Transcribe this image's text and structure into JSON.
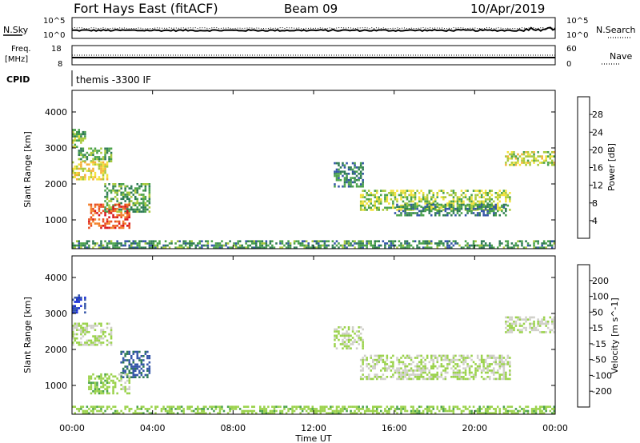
{
  "header": {
    "station": "Fort Hays East (fitACF)",
    "beam": "Beam 09",
    "date": "10/Apr/2019"
  },
  "noise_panel": {
    "left_label": "N.Sky",
    "right_label": "N.Search",
    "left_ticks": [
      "10^5",
      "10^0"
    ],
    "right_ticks": [
      "10^5",
      "10^0"
    ]
  },
  "freq_panel": {
    "left_label_1": "Freq.",
    "left_label_2": "[MHz]",
    "right_label": "Nave",
    "left_ticks": [
      "18",
      "8"
    ],
    "right_ticks": [
      "60",
      "0"
    ]
  },
  "cpid_panel": {
    "label": "CPID",
    "text": "themis -3300 IF"
  },
  "power_colorbar": {
    "label": "Power [dB]",
    "ticks": [
      "4",
      "8",
      "12",
      "16",
      "20",
      "24",
      "28"
    ],
    "colors": [
      "#1a2fd6",
      "#3455a8",
      "#2f7b55",
      "#4aa24a",
      "#a9c93a",
      "#f3e23a",
      "#f6b136",
      "#f4822a",
      "#e84e22",
      "#d8161c"
    ]
  },
  "velocity_colorbar": {
    "label": "Velocity [m s^-1]",
    "ticks": [
      "200",
      "100",
      "50",
      "15",
      "-15",
      "-50",
      "-100",
      "-200"
    ],
    "colors": [
      "#1a2fd6",
      "#3455a8",
      "#2f7b55",
      "#4aa24a",
      "#9ad24a",
      "#cfcfc8",
      "#f3e23a",
      "#f6b136",
      "#f4822a",
      "#d8161c"
    ]
  },
  "chart_data": [
    {
      "type": "heatmap",
      "title": "Fort Hays East (fitACF)",
      "xlabel": "Time UT",
      "ylabel": "Slant Range [km]",
      "colorbar_label": "Power [dB]",
      "x_ticks": [
        "00:00",
        "04:00",
        "08:00",
        "12:00",
        "16:00",
        "20:00",
        "00:00"
      ],
      "y_ticks": [
        1000,
        2000,
        3000,
        4000
      ],
      "xlim": [
        0,
        24
      ],
      "ylim": [
        200,
        4600
      ],
      "value_range": [
        0,
        30
      ],
      "regions": [
        {
          "t0": 0.0,
          "t1": 0.7,
          "r0": 3000,
          "r1": 3500,
          "level": 12
        },
        {
          "t0": 0.3,
          "t1": 2.0,
          "r0": 2600,
          "r1": 3000,
          "level": 10
        },
        {
          "t0": 0.0,
          "t1": 1.8,
          "r0": 2100,
          "r1": 2600,
          "level": 17
        },
        {
          "t0": 1.6,
          "t1": 3.9,
          "r0": 1200,
          "r1": 2000,
          "level": 10
        },
        {
          "t0": 0.8,
          "t1": 2.9,
          "r0": 750,
          "r1": 1400,
          "level": 25
        },
        {
          "t0": 0.0,
          "t1": 24.0,
          "r0": 200,
          "r1": 420,
          "level": 9
        },
        {
          "t0": 13.0,
          "t1": 14.4,
          "r0": 1900,
          "r1": 2600,
          "level": 8
        },
        {
          "t0": 14.3,
          "t1": 21.8,
          "r0": 1250,
          "r1": 1800,
          "level": 14
        },
        {
          "t0": 16.0,
          "t1": 21.6,
          "r0": 1100,
          "r1": 1400,
          "level": 8
        },
        {
          "t0": 21.5,
          "t1": 24.0,
          "r0": 2500,
          "r1": 2900,
          "level": 15
        }
      ]
    },
    {
      "type": "heatmap",
      "xlabel": "Time UT",
      "ylabel": "Slant Range [km]",
      "colorbar_label": "Velocity [m s^-1]",
      "x_ticks": [
        "00:00",
        "04:00",
        "08:00",
        "12:00",
        "16:00",
        "20:00",
        "00:00"
      ],
      "y_ticks": [
        1000,
        2000,
        3000,
        4000
      ],
      "xlim": [
        0,
        24
      ],
      "ylim": [
        200,
        4600
      ],
      "value_range": [
        -250,
        250
      ],
      "regions": [
        {
          "t0": 0.0,
          "t1": 0.7,
          "r0": 3000,
          "r1": 3500,
          "level": 200
        },
        {
          "t0": 0.0,
          "t1": 2.0,
          "r0": 2100,
          "r1": 2700,
          "level": 0
        },
        {
          "t0": 2.4,
          "t1": 3.9,
          "r0": 1200,
          "r1": 1950,
          "level": 160
        },
        {
          "t0": 0.8,
          "t1": 2.3,
          "r0": 750,
          "r1": 1300,
          "level": 35
        },
        {
          "t0": 2.3,
          "t1": 2.9,
          "r0": 750,
          "r1": 1300,
          "level": 0
        },
        {
          "t0": 0.0,
          "t1": 24.0,
          "r0": 200,
          "r1": 420,
          "level": 30
        },
        {
          "t0": 13.0,
          "t1": 14.4,
          "r0": 2000,
          "r1": 2600,
          "level": 0
        },
        {
          "t0": 14.3,
          "t1": 21.8,
          "r0": 1150,
          "r1": 1800,
          "level": 0
        },
        {
          "t0": 21.5,
          "t1": 24.0,
          "r0": 2450,
          "r1": 2900,
          "level": 0
        }
      ]
    }
  ]
}
